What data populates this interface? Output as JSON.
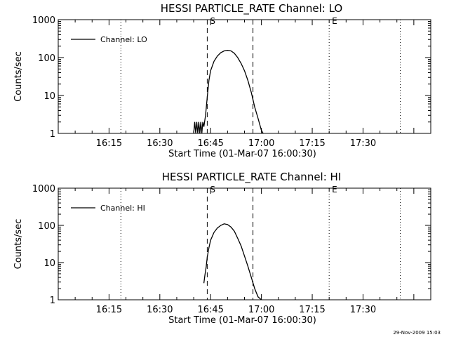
{
  "footer_timestamp": "29-Nov-2009 15:03",
  "chart_data": [
    {
      "type": "line",
      "title": "HESSI PARTICLE_RATE Channel: LO",
      "xlabel": "Start Time (01-Mar-07 16:00:30)",
      "ylabel": "Counts/sec",
      "yscale": "log",
      "ylim": [
        1,
        1000
      ],
      "xlim_minutes": [
        0,
        110
      ],
      "x_tick_labels": [
        {
          "label": "16:15",
          "minute": 15
        },
        {
          "label": "16:30",
          "minute": 30
        },
        {
          "label": "16:45",
          "minute": 45
        },
        {
          "label": "17:00",
          "minute": 60
        },
        {
          "label": "17:15",
          "minute": 75
        },
        {
          "label": "17:30",
          "minute": 90
        }
      ],
      "y_tick_labels": [
        {
          "label": "1",
          "value": 1
        },
        {
          "label": "10",
          "value": 10
        },
        {
          "label": "100",
          "value": 100
        },
        {
          "label": "1000",
          "value": 1000
        }
      ],
      "legend": {
        "position": "top-left",
        "entries": [
          "Channel: LO"
        ]
      },
      "markers": [
        {
          "label": "S",
          "minute": 44,
          "style": "dashed"
        },
        {
          "label": "",
          "minute": 57.5,
          "style": "dashed"
        },
        {
          "label": "E",
          "minute": 80,
          "style": "dotted"
        },
        {
          "label": "",
          "minute": 18.5,
          "style": "dotted"
        },
        {
          "label": "",
          "minute": 101,
          "style": "dotted"
        }
      ],
      "series": [
        {
          "name": "Channel: LO",
          "x": [
            40,
            40.3,
            40.6,
            40.9,
            41.2,
            41.5,
            41.8,
            42.1,
            42.4,
            42.7,
            43,
            43.5,
            44,
            44.5,
            45,
            46,
            47,
            48,
            49,
            50,
            51,
            52,
            53,
            54,
            55,
            56,
            57,
            58,
            59,
            60,
            60.5
          ],
          "y": [
            1,
            2,
            1,
            2,
            1,
            2,
            1,
            2,
            1,
            2,
            1.5,
            3,
            9,
            25,
            45,
            80,
            110,
            135,
            150,
            155,
            150,
            130,
            100,
            70,
            45,
            25,
            12,
            5,
            2.5,
            1.2,
            1
          ]
        }
      ]
    },
    {
      "type": "line",
      "title": "HESSI PARTICLE_RATE Channel: HI",
      "xlabel": "Start Time (01-Mar-07 16:00:30)",
      "ylabel": "Counts/sec",
      "yscale": "log",
      "ylim": [
        1,
        1000
      ],
      "xlim_minutes": [
        0,
        110
      ],
      "x_tick_labels": [
        {
          "label": "16:15",
          "minute": 15
        },
        {
          "label": "16:30",
          "minute": 30
        },
        {
          "label": "16:45",
          "minute": 45
        },
        {
          "label": "17:00",
          "minute": 60
        },
        {
          "label": "17:15",
          "minute": 75
        },
        {
          "label": "17:30",
          "minute": 90
        }
      ],
      "y_tick_labels": [
        {
          "label": "1",
          "value": 1
        },
        {
          "label": "10",
          "value": 10
        },
        {
          "label": "100",
          "value": 100
        },
        {
          "label": "1000",
          "value": 1000
        }
      ],
      "legend": {
        "position": "top-left",
        "entries": [
          "Channel: HI"
        ]
      },
      "markers": [
        {
          "label": "S",
          "minute": 44,
          "style": "dashed"
        },
        {
          "label": "",
          "minute": 57.5,
          "style": "dashed"
        },
        {
          "label": "E",
          "minute": 80,
          "style": "dotted"
        },
        {
          "label": "",
          "minute": 18.5,
          "style": "dotted"
        },
        {
          "label": "",
          "minute": 101,
          "style": "dotted"
        }
      ],
      "series": [
        {
          "name": "Channel: HI",
          "x": [
            43,
            43.3,
            43.7,
            44,
            44.5,
            45,
            46,
            47,
            48,
            49,
            50,
            51,
            52,
            53,
            54,
            55,
            56,
            57,
            58,
            59,
            60
          ],
          "y": [
            2.8,
            4.5,
            8,
            14,
            25,
            40,
            65,
            85,
            100,
            110,
            105,
            90,
            70,
            45,
            28,
            15,
            8,
            4,
            2,
            1.2,
            1
          ]
        }
      ]
    }
  ]
}
